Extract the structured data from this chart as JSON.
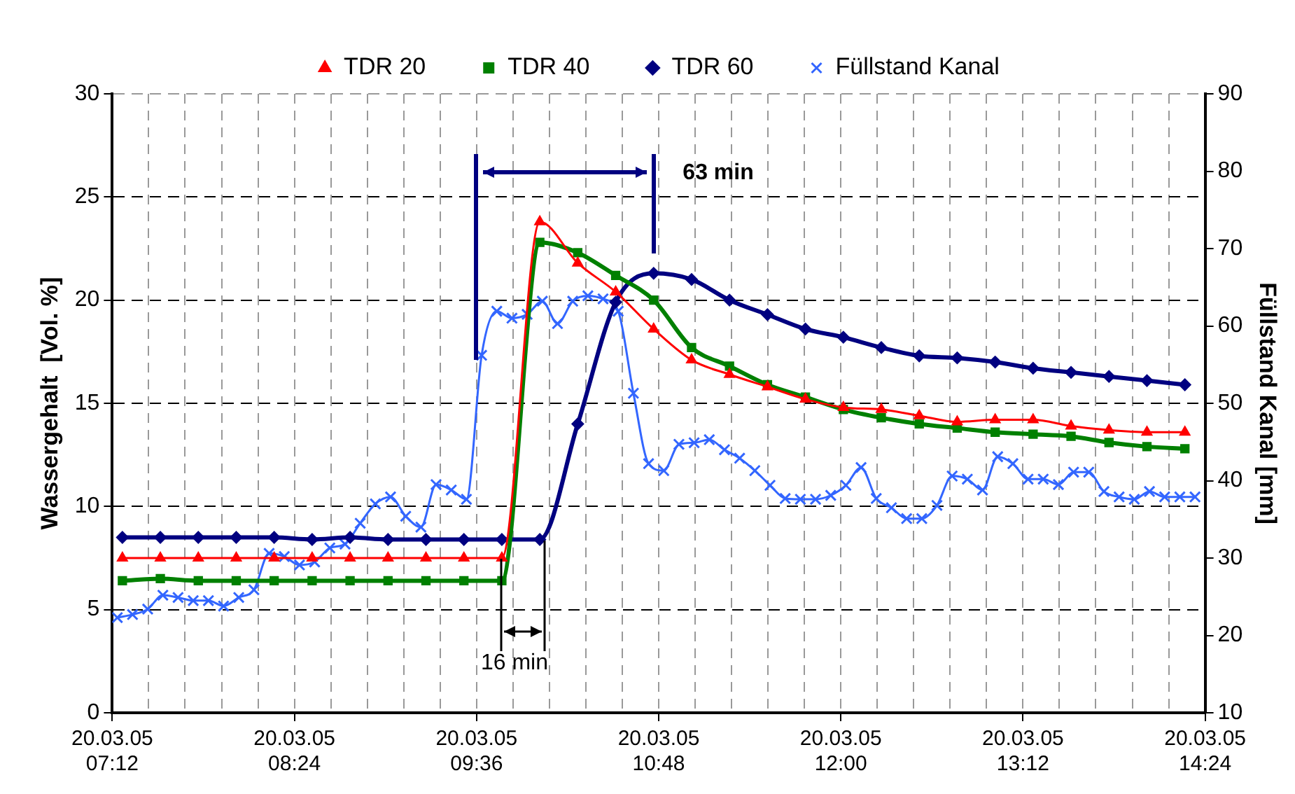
{
  "chart_data": {
    "type": "line",
    "ylabel": "Wassergehalt  [Vol. %]",
    "y2label": "Füllstand Kanal [mm]",
    "xlim": [
      "--03-20T07:12",
      "--03-20T14:24"
    ],
    "xticks": [
      {
        "value": "--03-20T07:12",
        "label": "20.03.05\n07:12"
      },
      {
        "value": "--03-20T07:26:24",
        "label": null
      },
      {
        "value": "--03-20T07:40:48",
        "label": null
      },
      {
        "value": "--03-20T07:55:12",
        "label": null
      },
      {
        "value": "--03-20T08:09:36",
        "label": null
      },
      {
        "value": "--03-20T08:24",
        "label": "20.03.05\n08:24"
      },
      {
        "value": "--03-20T08:38:24",
        "label": null
      },
      {
        "value": "--03-20T08:52:48",
        "label": null
      },
      {
        "value": "--03-20T09:07:12",
        "label": null
      },
      {
        "value": "--03-20T09:21:36",
        "label": null
      },
      {
        "value": "--03-20T09:36",
        "label": "20.03.05\n09:36"
      },
      {
        "value": "--03-20T09:50:24",
        "label": null
      },
      {
        "value": "--03-20T10:04:48",
        "label": null
      },
      {
        "value": "--03-20T10:19:12",
        "label": null
      },
      {
        "value": "--03-20T10:33:36",
        "label": null
      },
      {
        "value": "--03-20T10:48",
        "label": "20.03.05\n10:48"
      },
      {
        "value": "--03-20T11:02:24",
        "label": null
      },
      {
        "value": "--03-20T11:16:48",
        "label": null
      },
      {
        "value": "--03-20T11:31:12",
        "label": null
      },
      {
        "value": "--03-20T11:45:36",
        "label": null
      },
      {
        "value": "--03-20T12:00",
        "label": "20.03.05\n12:00"
      },
      {
        "value": "--03-20T12:14:24",
        "label": null
      },
      {
        "value": "--03-20T12:28:48",
        "label": null
      },
      {
        "value": "--03-20T12:43:12",
        "label": null
      },
      {
        "value": "--03-20T12:57:36",
        "label": null
      },
      {
        "value": "--03-20T13:12",
        "label": "20.03.05\n13:12"
      },
      {
        "value": "--03-20T13:26:24",
        "label": null
      },
      {
        "value": "--03-20T13:40:48",
        "label": null
      },
      {
        "value": "--03-20T13:55:12",
        "label": null
      },
      {
        "value": "--03-20T14:09:36",
        "label": null
      },
      {
        "value": "--03-20T14:24",
        "label": "20.03.05\n14:24"
      }
    ],
    "ylim": [
      0,
      30
    ],
    "yticks": [
      0,
      5,
      10,
      15,
      20,
      25,
      30
    ],
    "y2lim": [
      10,
      90
    ],
    "y2ticks": [
      10,
      20,
      30,
      40,
      50,
      60,
      70,
      80,
      90
    ],
    "grid": true,
    "legend": "top",
    "line_style": "solid",
    "series": [
      {
        "name": "TDR 20",
        "color": "#ff0000",
        "marker": "triangle",
        "x": [
          "--03-20T07:16",
          "--03-20T07:31",
          "--03-20T07:46",
          "--03-20T08:01",
          "--03-20T08:16",
          "--03-20T08:31",
          "--03-20T08:46",
          "--03-20T09:01",
          "--03-20T09:16",
          "--03-20T09:31",
          "--03-20T09:46",
          "--03-20T10:01",
          "--03-20T10:16",
          "--03-20T10:31",
          "--03-20T10:46",
          "--03-20T11:01",
          "--03-20T11:16",
          "--03-20T11:31",
          "--03-20T11:46",
          "--03-20T12:01",
          "--03-20T12:16",
          "--03-20T12:31",
          "--03-20T12:46",
          "--03-20T13:01",
          "--03-20T13:16",
          "--03-20T13:31",
          "--03-20T13:46",
          "--03-20T14:01",
          "--03-20T14:16"
        ],
        "values": [
          7.5,
          7.5,
          7.5,
          7.5,
          7.5,
          7.5,
          7.5,
          7.5,
          7.5,
          7.5,
          7.5,
          23.8,
          21.8,
          20.4,
          18.6,
          17.1,
          16.4,
          15.8,
          15.2,
          14.8,
          14.7,
          14.4,
          14.1,
          14.2,
          14.2,
          13.9,
          13.7,
          13.6,
          13.6
        ]
      },
      {
        "name": "TDR 40",
        "color": "#008000",
        "marker": "square",
        "x": [
          "--03-20T07:16",
          "--03-20T07:31",
          "--03-20T07:46",
          "--03-20T08:01",
          "--03-20T08:16",
          "--03-20T08:31",
          "--03-20T08:46",
          "--03-20T09:01",
          "--03-20T09:16",
          "--03-20T09:31",
          "--03-20T09:46",
          "--03-20T10:01",
          "--03-20T10:16",
          "--03-20T10:31",
          "--03-20T10:46",
          "--03-20T11:01",
          "--03-20T11:16",
          "--03-20T11:31",
          "--03-20T11:46",
          "--03-20T12:01",
          "--03-20T12:16",
          "--03-20T12:31",
          "--03-20T12:46",
          "--03-20T13:01",
          "--03-20T13:16",
          "--03-20T13:31",
          "--03-20T13:46",
          "--03-20T14:01",
          "--03-20T14:16"
        ],
        "values": [
          6.4,
          6.5,
          6.4,
          6.4,
          6.4,
          6.4,
          6.4,
          6.4,
          6.4,
          6.4,
          6.4,
          22.8,
          22.3,
          21.2,
          20.0,
          17.7,
          16.8,
          15.9,
          15.3,
          14.7,
          14.3,
          14.0,
          13.8,
          13.6,
          13.5,
          13.4,
          13.1,
          12.9,
          12.8
        ]
      },
      {
        "name": "TDR 60",
        "color": "#000080",
        "marker": "diamond",
        "x": [
          "--03-20T07:16",
          "--03-20T07:31",
          "--03-20T07:46",
          "--03-20T08:01",
          "--03-20T08:16",
          "--03-20T08:31",
          "--03-20T08:46",
          "--03-20T09:01",
          "--03-20T09:16",
          "--03-20T09:31",
          "--03-20T09:46",
          "--03-20T10:01",
          "--03-20T10:16",
          "--03-20T10:31",
          "--03-20T10:46",
          "--03-20T11:01",
          "--03-20T11:16",
          "--03-20T11:31",
          "--03-20T11:46",
          "--03-20T12:01",
          "--03-20T12:16",
          "--03-20T12:31",
          "--03-20T12:46",
          "--03-20T13:01",
          "--03-20T13:16",
          "--03-20T13:31",
          "--03-20T13:46",
          "--03-20T14:01",
          "--03-20T14:16"
        ],
        "values": [
          8.5,
          8.5,
          8.5,
          8.5,
          8.5,
          8.4,
          8.5,
          8.4,
          8.4,
          8.4,
          8.4,
          8.4,
          14.0,
          19.9,
          21.3,
          21.0,
          20.0,
          19.3,
          18.6,
          18.2,
          17.7,
          17.3,
          17.2,
          17.0,
          16.7,
          16.5,
          16.3,
          16.1,
          15.9
        ]
      },
      {
        "name": "Füllstand Kanal",
        "color": "#3366ff",
        "marker": "cross",
        "axis": "y2",
        "x": [
          "--03-20T07:14",
          "--03-20T07:20",
          "--03-20T07:26",
          "--03-20T07:32",
          "--03-20T07:38",
          "--03-20T07:44",
          "--03-20T07:50",
          "--03-20T07:56",
          "--03-20T08:02",
          "--03-20T08:08",
          "--03-20T08:14",
          "--03-20T08:20",
          "--03-20T08:26",
          "--03-20T08:32",
          "--03-20T08:38",
          "--03-20T08:44",
          "--03-20T08:50",
          "--03-20T08:56",
          "--03-20T09:02",
          "--03-20T09:08",
          "--03-20T09:14",
          "--03-20T09:20",
          "--03-20T09:26",
          "--03-20T09:32",
          "--03-20T09:38",
          "--03-20T09:44",
          "--03-20T09:50",
          "--03-20T09:56",
          "--03-20T10:02",
          "--03-20T10:08",
          "--03-20T10:14",
          "--03-20T10:20",
          "--03-20T10:26",
          "--03-20T10:32",
          "--03-20T10:38",
          "--03-20T10:44",
          "--03-20T10:50",
          "--03-20T10:56",
          "--03-20T11:02",
          "--03-20T11:08",
          "--03-20T11:14",
          "--03-20T11:20",
          "--03-20T11:26",
          "--03-20T11:32",
          "--03-20T11:38",
          "--03-20T11:44",
          "--03-20T11:50",
          "--03-20T11:56",
          "--03-20T12:02",
          "--03-20T12:08",
          "--03-20T12:14",
          "--03-20T12:20",
          "--03-20T12:26",
          "--03-20T12:32",
          "--03-20T12:38",
          "--03-20T12:44",
          "--03-20T12:50",
          "--03-20T12:56",
          "--03-20T13:02",
          "--03-20T13:08",
          "--03-20T13:14",
          "--03-20T13:20",
          "--03-20T13:26",
          "--03-20T13:32",
          "--03-20T13:38",
          "--03-20T13:44",
          "--03-20T13:50",
          "--03-20T13:56",
          "--03-20T14:02",
          "--03-20T14:08",
          "--03-20T14:14",
          "--03-20T14:20"
        ],
        "values": [
          22.3,
          22.7,
          23.4,
          25.2,
          24.9,
          24.5,
          24.5,
          23.8,
          24.9,
          25.9,
          30.6,
          30.2,
          29.1,
          29.5,
          31.3,
          31.8,
          34.5,
          37.0,
          37.9,
          35.4,
          34.0,
          39.5,
          38.8,
          37.6,
          56.2,
          61.9,
          61.0,
          61.5,
          63.2,
          60.3,
          63.2,
          63.9,
          63.5,
          61.9,
          51.3,
          42.2,
          41.3,
          44.7,
          44.9,
          45.3,
          44.0,
          42.9,
          41.3,
          39.4,
          37.7,
          37.6,
          37.6,
          38.1,
          39.4,
          41.7,
          37.7,
          36.5,
          35.1,
          35.1,
          36.8,
          40.6,
          40.2,
          38.8,
          43.1,
          42.2,
          40.2,
          40.2,
          39.5,
          41.1,
          41.1,
          38.6,
          37.9,
          37.6,
          38.6,
          37.9,
          37.9,
          37.9
        ]
      }
    ],
    "annotations": [
      "63 min",
      {
        "text": "16 min",
        "x": "--03-20T09:46",
        "y": 7.5
      }
    ]
  }
}
